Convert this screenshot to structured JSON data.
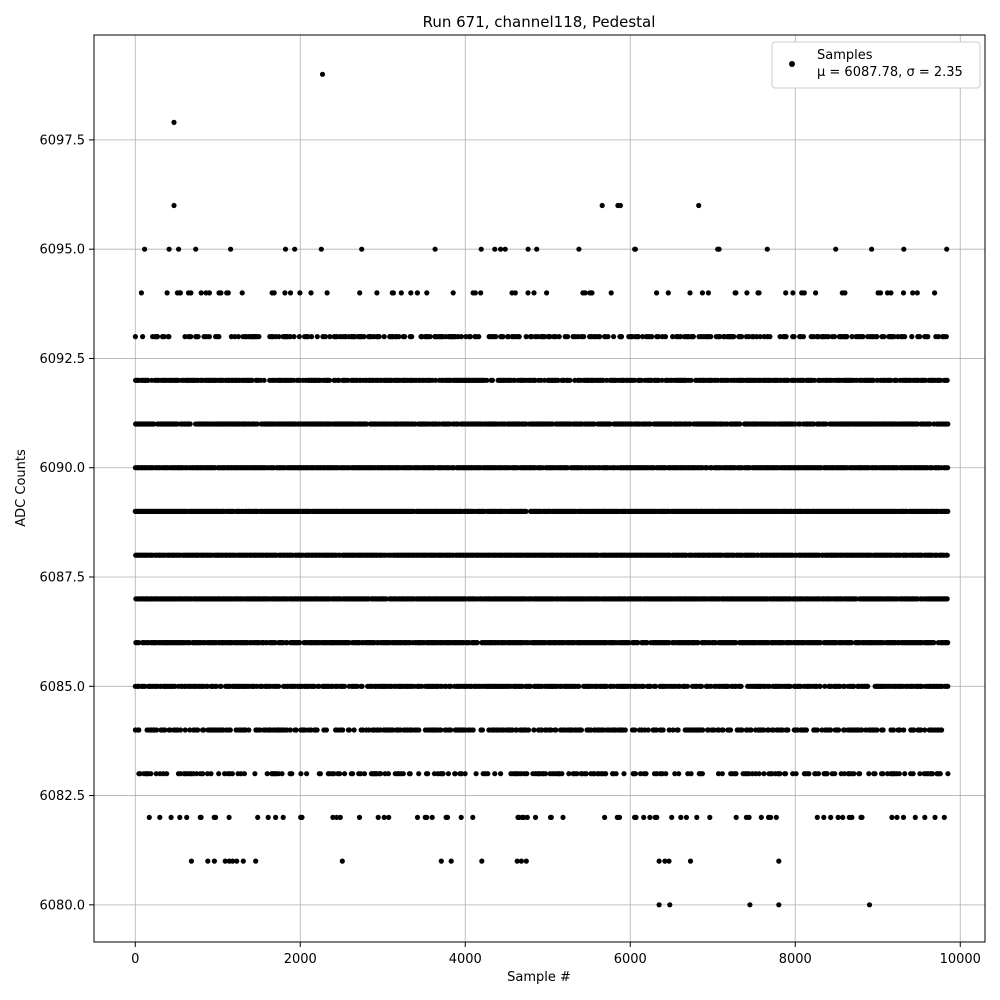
{
  "chart_data": {
    "type": "scatter",
    "title": "Run 671, channel118, Pedestal",
    "xlabel": "Sample #",
    "ylabel": "ADC Counts",
    "xlim": [
      -500,
      10300
    ],
    "ylim": [
      6079.15,
      6099.9
    ],
    "xticks": [
      0,
      2000,
      4000,
      6000,
      8000,
      10000
    ],
    "xtick_labels": [
      "0",
      "2000",
      "4000",
      "6000",
      "8000",
      "10000"
    ],
    "yticks": [
      6080.0,
      6082.5,
      6085.0,
      6087.5,
      6090.0,
      6092.5,
      6095.0,
      6097.5
    ],
    "ytick_labels": [
      "6080.0",
      "6082.5",
      "6085.0",
      "6087.5",
      "6090.0",
      "6092.5",
      "6095.0",
      "6097.5"
    ],
    "grid": true,
    "legend_position": "top-right",
    "legend_entries": [
      "Samples",
      "μ = 6087.78, σ = 2.35"
    ],
    "series": [
      {
        "name": "Samples",
        "color": "#000000",
        "n_points": 9850,
        "mean": 6087.78,
        "sigma": 2.35,
        "levels": [
          {
            "y": 6080,
            "x": [
              6350,
              6480,
              7450,
              7800,
              8900
            ]
          },
          {
            "y": 6081,
            "x": [
              680,
              880,
              960,
              1090,
              1140,
              1180,
              1230,
              1310,
              1460,
              2510,
              3710,
              3830,
              4200,
              4630,
              4680,
              4740,
              6350,
              6420,
              6470,
              6730,
              7800
            ]
          },
          {
            "y": 6097.9,
            "x": [
              470
            ]
          },
          {
            "y": 6099,
            "x": [
              2270
            ]
          },
          {
            "y": 6096,
            "x": [
              470,
              5660,
              5850,
              5880,
              6830
            ]
          }
        ],
        "note_levels": [
          6081,
          6082,
          6083,
          6084,
          6085,
          6086,
          6087,
          6088,
          6089,
          6090,
          6091,
          6092,
          6093,
          6094,
          6095
        ]
      }
    ]
  }
}
